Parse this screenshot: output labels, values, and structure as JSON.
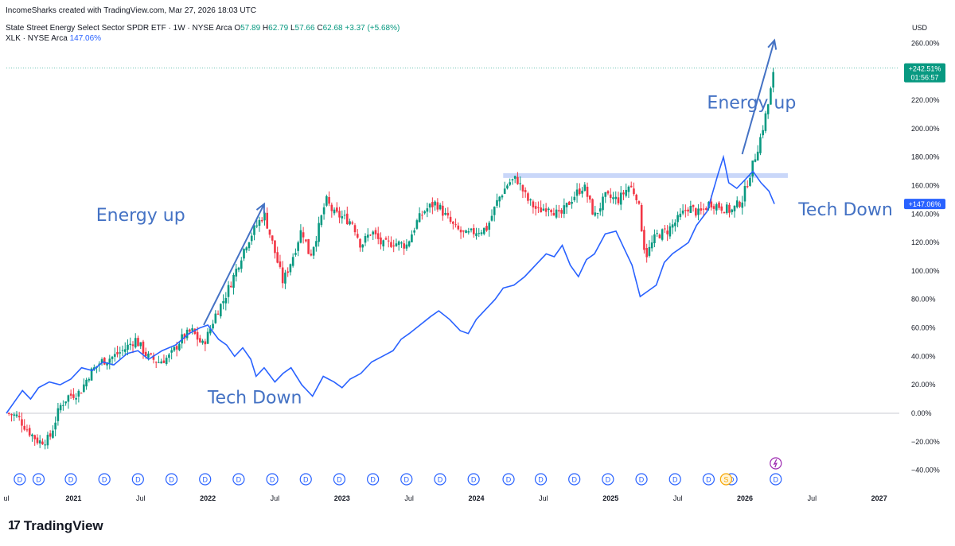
{
  "header": {
    "credit": "IncomeSharks created with TradingView.com, Mar 27, 2026 18:03 UTC",
    "symbol": "State Street Energy Select Sector SPDR ETF · 1W · NYSE Arca",
    "o_label": "O",
    "o_value": "57.89",
    "h_label": "H",
    "h_value": "62.79",
    "l_label": "L",
    "l_value": "57.66",
    "c_label": "C",
    "c_value": "62.68",
    "change": "+3.37 (+5.68%)",
    "compare_symbol": "XLK · NYSE Arca",
    "compare_value": "147.06%"
  },
  "brand": {
    "name": "TradingView"
  },
  "colors": {
    "up": "#089981",
    "down": "#f23645",
    "compare": "#2962ff",
    "annotation": "#4472c4",
    "dividend": "#2962ff",
    "split": "#f7a600",
    "event": "#9c27b0"
  },
  "chart_data": {
    "type": "candlestick",
    "title": "State Street Energy Select Sector SPDR ETF · 1W · NYSE Arca",
    "ylabel": "USD",
    "yunit": "percent change",
    "ylim": [
      -48,
      268
    ],
    "yticks": [
      "260.00%",
      "240.00%",
      "220.00%",
      "200.00%",
      "180.00%",
      "160.00%",
      "140.00%",
      "120.00%",
      "100.00%",
      "80.00%",
      "60.00%",
      "40.00%",
      "20.00%",
      "0.00%",
      "−20.00%",
      "−40.00%"
    ],
    "ytick_values": [
      260,
      240,
      220,
      200,
      180,
      160,
      140,
      120,
      100,
      80,
      60,
      40,
      20,
      0,
      -20,
      -40
    ],
    "xlim": [
      2020.5,
      2027.15
    ],
    "xticks": [
      {
        "label": "ul",
        "t": 2020.5,
        "bold": false
      },
      {
        "label": "2021",
        "t": 2021.0,
        "bold": true
      },
      {
        "label": "Jul",
        "t": 2021.5,
        "bold": false
      },
      {
        "label": "2022",
        "t": 2022.0,
        "bold": true
      },
      {
        "label": "Jul",
        "t": 2022.5,
        "bold": false
      },
      {
        "label": "2023",
        "t": 2023.0,
        "bold": true
      },
      {
        "label": "Jul",
        "t": 2023.5,
        "bold": false
      },
      {
        "label": "2024",
        "t": 2024.0,
        "bold": true
      },
      {
        "label": "Jul",
        "t": 2024.5,
        "bold": false
      },
      {
        "label": "2025",
        "t": 2025.0,
        "bold": true
      },
      {
        "label": "Jul",
        "t": 2025.5,
        "bold": false
      },
      {
        "label": "2026",
        "t": 2026.0,
        "bold": true
      },
      {
        "label": "Jul",
        "t": 2026.5,
        "bold": false
      },
      {
        "label": "2027",
        "t": 2027.0,
        "bold": true
      }
    ],
    "energy_path": [
      [
        2020.5,
        0
      ],
      [
        2020.58,
        -2
      ],
      [
        2020.66,
        -12
      ],
      [
        2020.74,
        -20
      ],
      [
        2020.82,
        -18
      ],
      [
        2020.9,
        5
      ],
      [
        2020.96,
        12
      ],
      [
        2021.05,
        15
      ],
      [
        2021.12,
        28
      ],
      [
        2021.2,
        36
      ],
      [
        2021.3,
        40
      ],
      [
        2021.38,
        45
      ],
      [
        2021.46,
        52
      ],
      [
        2021.55,
        40
      ],
      [
        2021.63,
        36
      ],
      [
        2021.72,
        40
      ],
      [
        2021.8,
        52
      ],
      [
        2021.88,
        58
      ],
      [
        2021.96,
        48
      ],
      [
        2022.0,
        55
      ],
      [
        2022.06,
        70
      ],
      [
        2022.12,
        80
      ],
      [
        2022.2,
        98
      ],
      [
        2022.28,
        118
      ],
      [
        2022.35,
        130
      ],
      [
        2022.42,
        140
      ],
      [
        2022.48,
        120
      ],
      [
        2022.56,
        92
      ],
      [
        2022.64,
        112
      ],
      [
        2022.7,
        130
      ],
      [
        2022.76,
        110
      ],
      [
        2022.82,
        128
      ],
      [
        2022.88,
        150
      ],
      [
        2022.94,
        140
      ],
      [
        2023.0,
        138
      ],
      [
        2023.08,
        134
      ],
      [
        2023.14,
        118
      ],
      [
        2023.22,
        128
      ],
      [
        2023.3,
        118
      ],
      [
        2023.38,
        120
      ],
      [
        2023.48,
        118
      ],
      [
        2023.56,
        135
      ],
      [
        2023.62,
        143
      ],
      [
        2023.7,
        148
      ],
      [
        2023.76,
        140
      ],
      [
        2023.84,
        130
      ],
      [
        2023.92,
        125
      ],
      [
        2024.0,
        128
      ],
      [
        2024.08,
        130
      ],
      [
        2024.16,
        150
      ],
      [
        2024.24,
        162
      ],
      [
        2024.3,
        165
      ],
      [
        2024.38,
        150
      ],
      [
        2024.46,
        142
      ],
      [
        2024.54,
        146
      ],
      [
        2024.62,
        138
      ],
      [
        2024.72,
        152
      ],
      [
        2024.8,
        160
      ],
      [
        2024.88,
        138
      ],
      [
        2024.96,
        152
      ],
      [
        2025.06,
        150
      ],
      [
        2025.14,
        160
      ],
      [
        2025.2,
        152
      ],
      [
        2025.26,
        110
      ],
      [
        2025.34,
        125
      ],
      [
        2025.42,
        128
      ],
      [
        2025.5,
        136
      ],
      [
        2025.58,
        145
      ],
      [
        2025.66,
        140
      ],
      [
        2025.74,
        148
      ],
      [
        2025.82,
        145
      ],
      [
        2025.9,
        142
      ],
      [
        2025.98,
        150
      ],
      [
        2026.06,
        175
      ],
      [
        2026.12,
        195
      ],
      [
        2026.18,
        220
      ],
      [
        2026.22,
        242
      ]
    ],
    "tech_line": [
      [
        2020.5,
        0
      ],
      [
        2020.56,
        8
      ],
      [
        2020.62,
        16
      ],
      [
        2020.68,
        10
      ],
      [
        2020.74,
        18
      ],
      [
        2020.82,
        22
      ],
      [
        2020.9,
        20
      ],
      [
        2020.98,
        24
      ],
      [
        2021.06,
        32
      ],
      [
        2021.14,
        30
      ],
      [
        2021.22,
        36
      ],
      [
        2021.3,
        34
      ],
      [
        2021.4,
        42
      ],
      [
        2021.48,
        44
      ],
      [
        2021.56,
        38
      ],
      [
        2021.66,
        44
      ],
      [
        2021.76,
        48
      ],
      [
        2021.86,
        56
      ],
      [
        2021.94,
        60
      ],
      [
        2022.0,
        62
      ],
      [
        2022.08,
        52
      ],
      [
        2022.14,
        48
      ],
      [
        2022.2,
        40
      ],
      [
        2022.26,
        46
      ],
      [
        2022.32,
        38
      ],
      [
        2022.36,
        26
      ],
      [
        2022.42,
        32
      ],
      [
        2022.5,
        22
      ],
      [
        2022.56,
        28
      ],
      [
        2022.62,
        32
      ],
      [
        2022.7,
        20
      ],
      [
        2022.78,
        12
      ],
      [
        2022.86,
        26
      ],
      [
        2022.94,
        22
      ],
      [
        2023.0,
        18
      ],
      [
        2023.06,
        24
      ],
      [
        2023.14,
        28
      ],
      [
        2023.22,
        36
      ],
      [
        2023.3,
        40
      ],
      [
        2023.38,
        44
      ],
      [
        2023.44,
        52
      ],
      [
        2023.5,
        56
      ],
      [
        2023.58,
        62
      ],
      [
        2023.66,
        68
      ],
      [
        2023.72,
        72
      ],
      [
        2023.8,
        66
      ],
      [
        2023.88,
        58
      ],
      [
        2023.94,
        56
      ],
      [
        2024.0,
        66
      ],
      [
        2024.06,
        72
      ],
      [
        2024.14,
        80
      ],
      [
        2024.2,
        88
      ],
      [
        2024.28,
        90
      ],
      [
        2024.36,
        96
      ],
      [
        2024.44,
        104
      ],
      [
        2024.52,
        112
      ],
      [
        2024.58,
        110
      ],
      [
        2024.64,
        118
      ],
      [
        2024.7,
        104
      ],
      [
        2024.76,
        96
      ],
      [
        2024.82,
        108
      ],
      [
        2024.88,
        112
      ],
      [
        2024.96,
        126
      ],
      [
        2025.04,
        128
      ],
      [
        2025.1,
        116
      ],
      [
        2025.16,
        104
      ],
      [
        2025.22,
        82
      ],
      [
        2025.28,
        86
      ],
      [
        2025.34,
        90
      ],
      [
        2025.4,
        106
      ],
      [
        2025.46,
        112
      ],
      [
        2025.52,
        116
      ],
      [
        2025.58,
        120
      ],
      [
        2025.64,
        132
      ],
      [
        2025.72,
        142
      ],
      [
        2025.8,
        168
      ],
      [
        2025.84,
        180
      ],
      [
        2025.88,
        162
      ],
      [
        2025.94,
        158
      ],
      [
        2026.0,
        164
      ],
      [
        2026.06,
        170
      ],
      [
        2026.12,
        162
      ],
      [
        2026.18,
        156
      ],
      [
        2026.22,
        147.06
      ]
    ],
    "resistance_level": 167,
    "last_values": {
      "energy": "+242.51%",
      "countdown": "01:56:57",
      "tech": "+147.06%"
    },
    "event_markers": {
      "dividend_label": "D",
      "split_label": "S",
      "earnings_icon": "lightning-bolt",
      "dividend_times": [
        2020.6,
        2020.74,
        2020.98,
        2021.23,
        2021.48,
        2021.73,
        2021.98,
        2022.23,
        2022.48,
        2022.73,
        2022.98,
        2023.23,
        2023.48,
        2023.73,
        2023.98,
        2024.24,
        2024.48,
        2024.73,
        2024.98,
        2025.23,
        2025.48,
        2025.73,
        2025.9,
        2026.23
      ],
      "split_time": 2025.86,
      "earnings_time": 2026.23
    },
    "annotations": [
      {
        "text": "Energy up",
        "t": 2021.5,
        "v": 135
      },
      {
        "text": "Tech Down",
        "t": 2022.35,
        "v": 7
      },
      {
        "text": "Energy up",
        "t": 2026.05,
        "v": 214
      },
      {
        "text": "Tech Down",
        "t": 2026.75,
        "v": 139
      }
    ],
    "arrows": [
      {
        "from": [
          2021.97,
          62
        ],
        "to": [
          2022.42,
          147
        ]
      },
      {
        "from": [
          2025.98,
          182
        ],
        "to": [
          2026.22,
          262
        ]
      }
    ]
  }
}
